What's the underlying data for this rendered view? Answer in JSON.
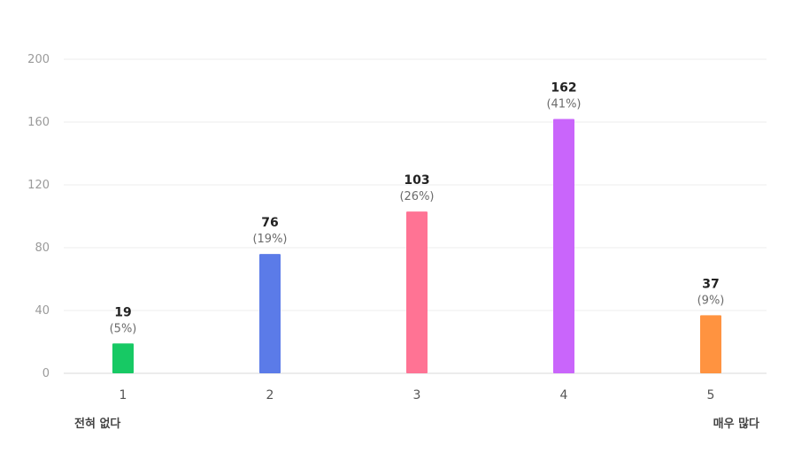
{
  "chart_data": {
    "type": "bar",
    "categories": [
      "1",
      "2",
      "3",
      "4",
      "5"
    ],
    "values": [
      19,
      76,
      103,
      162,
      37
    ],
    "percent_labels": [
      "(5%)",
      "(19%)",
      "(26%)",
      "(41%)",
      "(9%)"
    ],
    "colors": [
      "#17c964",
      "#5b7be8",
      "#ff7394",
      "#c965fb",
      "#ff9340"
    ],
    "ylim": [
      0,
      200
    ],
    "yticks": [
      0,
      40,
      80,
      120,
      160,
      200
    ],
    "grid": true,
    "title": "",
    "xlabel": "",
    "ylabel": ""
  },
  "scale": {
    "min_label": "전혀 없다",
    "max_label": "매우 많다"
  }
}
